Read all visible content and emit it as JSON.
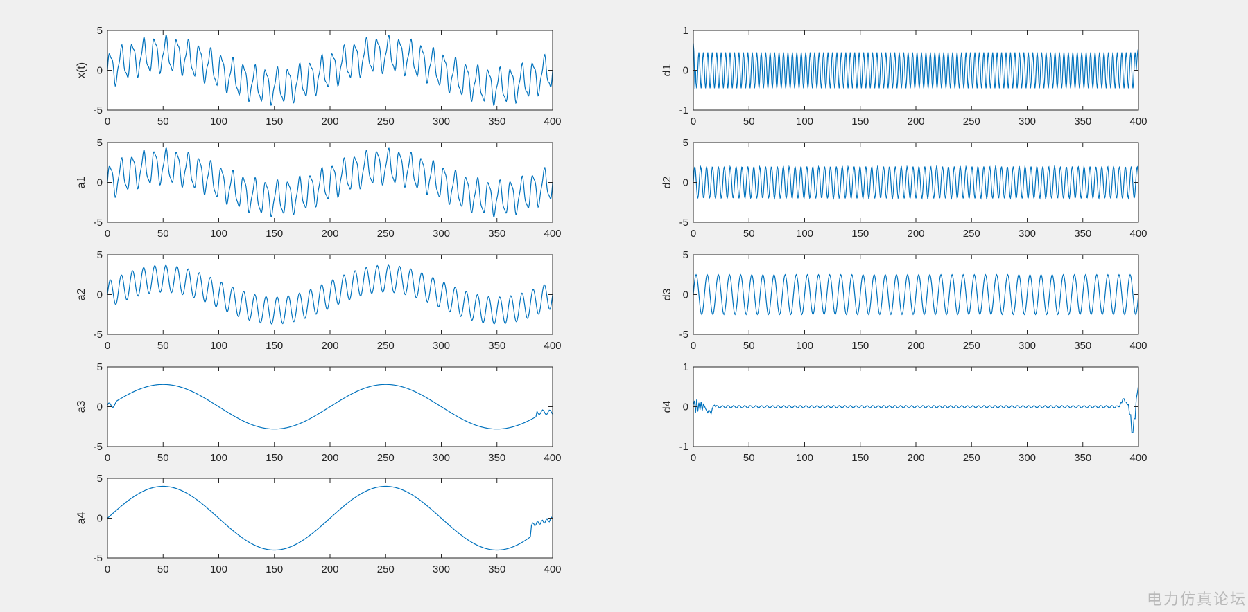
{
  "watermark": "电力仿真论坛",
  "chart_data": [
    {
      "type": "line",
      "ylabel": "x(t)",
      "xlim": [
        0,
        400
      ],
      "ylim": [
        -5,
        5
      ],
      "xticks": [
        0,
        50,
        100,
        150,
        200,
        250,
        300,
        350,
        400
      ],
      "yticks": [
        -5,
        0,
        5
      ],
      "color": "#0072BD",
      "series": [
        {
          "formula": "2*sin(2*pi*x/200) + 2*sin(2*pi*x/10) + 0.5*sin(2*pi*x/4)",
          "x_range": [
            0,
            400
          ],
          "step": 0.5
        }
      ]
    },
    {
      "type": "line",
      "ylabel": "d1",
      "xlim": [
        0,
        400
      ],
      "ylim": [
        -1,
        1
      ],
      "xticks": [
        0,
        50,
        100,
        150,
        200,
        250,
        300,
        350,
        400
      ],
      "yticks": [
        -1,
        0,
        1
      ],
      "color": "#0072BD",
      "series": [
        {
          "formula": "0.45*sin(2*pi*x/4)",
          "x_range": [
            0,
            400
          ],
          "step": 0.5,
          "edge_peak_start": 0.68,
          "edge_peak_end": 0.55
        }
      ]
    },
    {
      "type": "line",
      "ylabel": "a1",
      "xlim": [
        0,
        400
      ],
      "ylim": [
        -5,
        5
      ],
      "xticks": [
        0,
        50,
        100,
        150,
        200,
        250,
        300,
        350,
        400
      ],
      "yticks": [
        -5,
        0,
        5
      ],
      "color": "#0072BD",
      "series": [
        {
          "formula": "2*sin(2*pi*x/200) + 2*sin(2*pi*x/10) + 0.4*sin(2*pi*x/4)",
          "x_range": [
            0,
            400
          ],
          "step": 0.5
        }
      ]
    },
    {
      "type": "line",
      "ylabel": "d2",
      "xlim": [
        0,
        400
      ],
      "ylim": [
        -5,
        5
      ],
      "xticks": [
        0,
        50,
        100,
        150,
        200,
        250,
        300,
        350,
        400
      ],
      "yticks": [
        -5,
        0,
        5
      ],
      "color": "#0072BD",
      "series": [
        {
          "formula": "2*sin(2*pi*x/5.3)",
          "x_range": [
            0,
            400
          ],
          "step": 0.5
        }
      ]
    },
    {
      "type": "line",
      "ylabel": "a2",
      "xlim": [
        0,
        400
      ],
      "ylim": [
        -5,
        5
      ],
      "xticks": [
        0,
        50,
        100,
        150,
        200,
        250,
        300,
        350,
        400
      ],
      "yticks": [
        -5,
        0,
        5
      ],
      "color": "#0072BD",
      "series": [
        {
          "formula": "2*sin(2*pi*x/200) + 1.7*sin(2*pi*x/10)",
          "x_range": [
            0,
            400
          ],
          "step": 0.5
        }
      ]
    },
    {
      "type": "line",
      "ylabel": "d3",
      "xlim": [
        0,
        400
      ],
      "ylim": [
        -5,
        5
      ],
      "xticks": [
        0,
        50,
        100,
        150,
        200,
        250,
        300,
        350,
        400
      ],
      "yticks": [
        -5,
        0,
        5
      ],
      "color": "#0072BD",
      "series": [
        {
          "formula": "2.5*sin(2*pi*x/10)",
          "x_range": [
            0,
            400
          ],
          "step": 0.5
        }
      ]
    },
    {
      "type": "line",
      "ylabel": "a3",
      "xlim": [
        0,
        400
      ],
      "ylim": [
        -5,
        5
      ],
      "xticks": [
        0,
        50,
        100,
        150,
        200,
        250,
        300,
        350,
        400
      ],
      "yticks": [
        -5,
        0,
        5
      ],
      "color": "#0072BD",
      "series": [
        {
          "formula": "2.8*sin(2*pi*x/200)",
          "x_range": [
            0,
            400
          ],
          "step": 1
        }
      ]
    },
    {
      "type": "line",
      "ylabel": "d4",
      "xlim": [
        0,
        400
      ],
      "ylim": [
        -1,
        1
      ],
      "xticks": [
        0,
        50,
        100,
        150,
        200,
        250,
        300,
        350,
        400
      ],
      "yticks": [
        -1,
        0,
        1
      ],
      "color": "#0072BD",
      "series": [
        {
          "formula": "0.03*sin(2*pi*x/5) with transients near x=0-20 (~±0.2) and x=380-400 (dip to -0.65, rise to 0.55)",
          "x_range": [
            0,
            400
          ],
          "step": 1
        }
      ]
    },
    {
      "type": "line",
      "ylabel": "a4",
      "xlim": [
        0,
        400
      ],
      "ylim": [
        -5,
        5
      ],
      "xticks": [
        0,
        50,
        100,
        150,
        200,
        250,
        300,
        350,
        400
      ],
      "yticks": [
        -5,
        0,
        5
      ],
      "color": "#0072BD",
      "series": [
        {
          "formula": "4*sin(2*pi*x/200)",
          "x_range": [
            0,
            400
          ],
          "step": 1
        }
      ]
    }
  ]
}
